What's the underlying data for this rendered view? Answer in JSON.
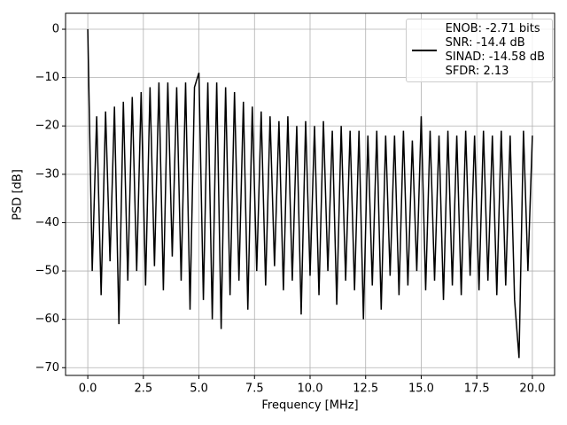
{
  "chart_data": {
    "type": "line",
    "xlabel": "Frequency [MHz]",
    "ylabel": "PSD [dB]",
    "xlim": [
      -1.0,
      21.0
    ],
    "ylim": [
      -71.6,
      3.3
    ],
    "xticks": [
      {
        "value": 0,
        "label": "0.0"
      },
      2.5,
      {
        "value": 5,
        "label": "5.0"
      },
      7.5,
      {
        "value": 10,
        "label": "10.0"
      },
      12.5,
      {
        "value": 15,
        "label": "15.0"
      },
      17.5,
      {
        "value": 20,
        "label": "20.0"
      }
    ],
    "yticks": [
      {
        "value": -70,
        "label": "−70"
      },
      {
        "value": -60,
        "label": "−60"
      },
      {
        "value": -50,
        "label": "−50"
      },
      {
        "value": -40,
        "label": "−40"
      },
      {
        "value": -30,
        "label": "−30"
      },
      {
        "value": -20,
        "label": "−20"
      },
      {
        "value": -10,
        "label": "−10"
      },
      0
    ],
    "grid": true,
    "legend": "upper right",
    "x": [
      0,
      0.2,
      0.4,
      0.6,
      0.8,
      1,
      1.2,
      1.4,
      1.6,
      1.8,
      2,
      2.2,
      2.4,
      2.6,
      2.8,
      3,
      3.2,
      3.4,
      3.6,
      3.8,
      4,
      4.2,
      4.4,
      4.6,
      4.8,
      5,
      5.2,
      5.4,
      5.6,
      5.8,
      6,
      6.2,
      6.4,
      6.6,
      6.8,
      7,
      7.2,
      7.4,
      7.6,
      7.8,
      8,
      8.2,
      8.4,
      8.6,
      8.8,
      9,
      9.2,
      9.4,
      9.6,
      9.8,
      10,
      10.2,
      10.4,
      10.6,
      10.8,
      11,
      11.2,
      11.4,
      11.6,
      11.8,
      12,
      12.2,
      12.4,
      12.6,
      12.8,
      13,
      13.2,
      13.4,
      13.6,
      13.8,
      14,
      14.2,
      14.4,
      14.6,
      14.8,
      15,
      15.2,
      15.4,
      15.6,
      15.8,
      16,
      16.2,
      16.4,
      16.6,
      16.8,
      17,
      17.2,
      17.4,
      17.6,
      17.8,
      18,
      18.2,
      18.4,
      18.6,
      18.8,
      19,
      19.2,
      19.4,
      19.6,
      19.8,
      20
    ],
    "series": [
      {
        "name": "ENOB: -2.71 bits\nSNR: -14.4 dB\nSINAD: -14.58 dB\nSFDR: 2.13",
        "color": "#000000",
        "values": [
          0,
          -50,
          -18,
          -55,
          -17,
          -48,
          -16,
          -61,
          -15,
          -52,
          -14,
          -50,
          -13,
          -53,
          -12,
          -49,
          -11,
          -54,
          -11,
          -47,
          -12,
          -52,
          -11,
          -58,
          -12,
          -9,
          -56,
          -11,
          -60,
          -11,
          -62,
          -12,
          -55,
          -13,
          -52,
          -15,
          -58,
          -16,
          -50,
          -17,
          -53,
          -18,
          -49,
          -19,
          -54,
          -18,
          -52,
          -20,
          -59,
          -19,
          -51,
          -20,
          -55,
          -19,
          -50,
          -21,
          -57,
          -20,
          -52,
          -21,
          -54,
          -21,
          -60,
          -22,
          -53,
          -21,
          -58,
          -22,
          -51,
          -22,
          -55,
          -21,
          -53,
          -23,
          -50,
          -18,
          -54,
          -21,
          -52,
          -22,
          -56,
          -21,
          -53,
          -22,
          -55,
          -21,
          -51,
          -22,
          -54,
          -21,
          -52,
          -22,
          -55,
          -21,
          -53,
          -22,
          -56,
          -68,
          -21,
          -50,
          -22
        ]
      }
    ]
  }
}
